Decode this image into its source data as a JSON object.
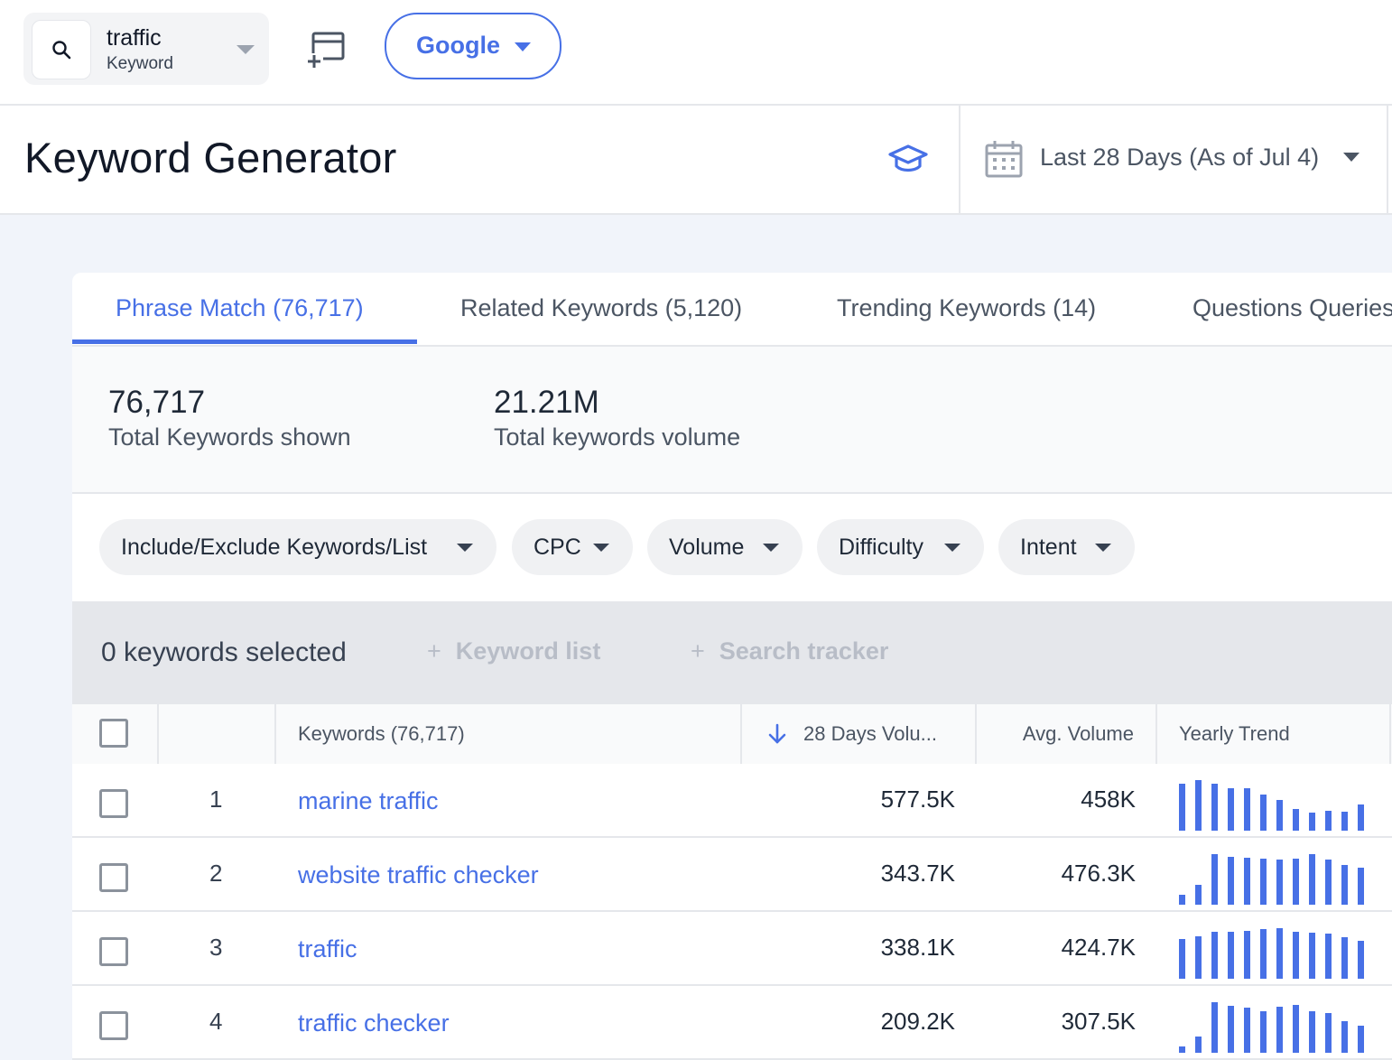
{
  "search": {
    "term": "traffic",
    "type": "Keyword"
  },
  "engine": {
    "label": "Google"
  },
  "header": {
    "title": "Keyword Generator",
    "date_range": "Last 28 Days (As of Jul 4)"
  },
  "tabs": [
    {
      "label": "Phrase Match (76,717)",
      "active": true
    },
    {
      "label": "Related Keywords (5,120)",
      "active": false
    },
    {
      "label": "Trending Keywords (14)",
      "active": false
    },
    {
      "label": "Questions Queries",
      "active": false
    }
  ],
  "stats": [
    {
      "value": "76,717",
      "label": "Total Keywords shown"
    },
    {
      "value": "21.21M",
      "label": "Total keywords volume"
    }
  ],
  "filters": [
    "Include/Exclude Keywords/List",
    "CPC",
    "Volume",
    "Difficulty",
    "Intent"
  ],
  "selection": {
    "count_text": "0 keywords selected",
    "plus": "+",
    "keyword_list": "Keyword list",
    "search_tracker": "Search tracker"
  },
  "table": {
    "columns": {
      "keywords": "Keywords (76,717)",
      "volume": "28 Days Volu...",
      "avg_volume": "Avg. Volume",
      "trend": "Yearly Trend"
    },
    "rows": [
      {
        "num": "1",
        "keyword": "marine traffic",
        "volume": "577.5K",
        "avg": "458K",
        "trend": [
          0.93,
          1.0,
          0.93,
          0.84,
          0.84,
          0.71,
          0.6,
          0.42,
          0.36,
          0.4,
          0.38,
          0.51
        ]
      },
      {
        "num": "2",
        "keyword": "website traffic checker",
        "volume": "343.7K",
        "avg": "476.3K",
        "trend": [
          0.2,
          0.4,
          1.0,
          0.95,
          0.93,
          0.91,
          0.89,
          0.91,
          1.0,
          0.89,
          0.78,
          0.73
        ]
      },
      {
        "num": "3",
        "keyword": "traffic",
        "volume": "338.1K",
        "avg": "424.7K",
        "trend": [
          0.78,
          0.84,
          0.93,
          0.93,
          0.95,
          0.98,
          1.0,
          0.93,
          0.91,
          0.89,
          0.82,
          0.75
        ]
      },
      {
        "num": "4",
        "keyword": "traffic checker",
        "volume": "209.2K",
        "avg": "307.5K",
        "trend": [
          0.13,
          0.33,
          1.0,
          0.93,
          0.89,
          0.82,
          0.91,
          0.95,
          0.82,
          0.78,
          0.62,
          0.53
        ]
      }
    ]
  },
  "colors": {
    "accent": "#4770e6",
    "bg": "#f1f4fa"
  }
}
